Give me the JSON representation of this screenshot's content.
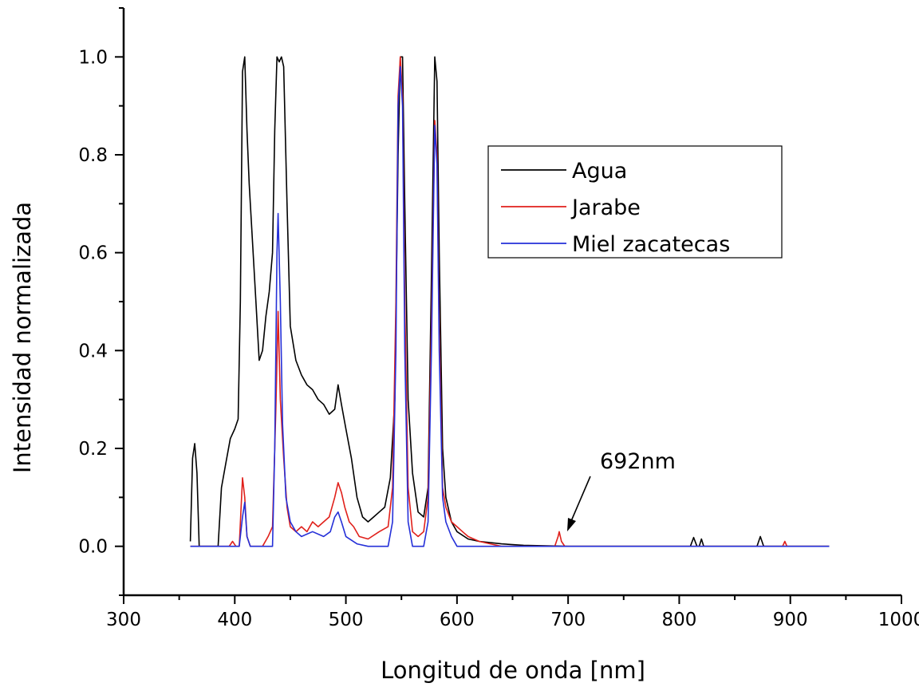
{
  "chart_data": {
    "type": "line",
    "title": "",
    "xlabel": "Longitud de onda [nm]",
    "ylabel": "Intensidad normalizada",
    "xlim": [
      300,
      1000
    ],
    "ylim": [
      -0.1,
      1.1
    ],
    "x_ticks": [
      300,
      400,
      500,
      600,
      700,
      800,
      900,
      1000
    ],
    "x_tick_labels": [
      "300",
      "400",
      "500",
      "600",
      "700",
      "800",
      "900",
      "1000"
    ],
    "y_ticks": [
      0.0,
      0.2,
      0.4,
      0.6,
      0.8,
      1.0
    ],
    "y_tick_labels": [
      "0.0",
      "0.2",
      "0.4",
      "0.6",
      "0.8",
      "1.0"
    ],
    "grid": false,
    "legend_position": "upper-right",
    "annotation": {
      "text": "692nm",
      "x": 692,
      "y": 0.03
    },
    "series": [
      {
        "name": "Agua",
        "color": "#000000",
        "points": [
          [
            360,
            0.01
          ],
          [
            362,
            0.18
          ],
          [
            364,
            0.21
          ],
          [
            366,
            0.15
          ],
          [
            368,
            0.0
          ],
          [
            380,
            0.0
          ],
          [
            385,
            0.0
          ],
          [
            388,
            0.12
          ],
          [
            392,
            0.17
          ],
          [
            396,
            0.22
          ],
          [
            400,
            0.24
          ],
          [
            403,
            0.26
          ],
          [
            405,
            0.5
          ],
          [
            407,
            0.97
          ],
          [
            409,
            1.0
          ],
          [
            411,
            0.85
          ],
          [
            413,
            0.74
          ],
          [
            416,
            0.62
          ],
          [
            419,
            0.5
          ],
          [
            422,
            0.38
          ],
          [
            425,
            0.4
          ],
          [
            428,
            0.47
          ],
          [
            431,
            0.52
          ],
          [
            434,
            0.6
          ],
          [
            436,
            0.85
          ],
          [
            438,
            1.0
          ],
          [
            440,
            0.99
          ],
          [
            442,
            1.0
          ],
          [
            444,
            0.98
          ],
          [
            447,
            0.7
          ],
          [
            450,
            0.45
          ],
          [
            455,
            0.38
          ],
          [
            460,
            0.35
          ],
          [
            465,
            0.33
          ],
          [
            470,
            0.32
          ],
          [
            475,
            0.3
          ],
          [
            480,
            0.29
          ],
          [
            485,
            0.27
          ],
          [
            490,
            0.28
          ],
          [
            493,
            0.33
          ],
          [
            496,
            0.29
          ],
          [
            500,
            0.24
          ],
          [
            505,
            0.18
          ],
          [
            510,
            0.1
          ],
          [
            515,
            0.06
          ],
          [
            520,
            0.05
          ],
          [
            525,
            0.06
          ],
          [
            530,
            0.07
          ],
          [
            535,
            0.08
          ],
          [
            540,
            0.14
          ],
          [
            544,
            0.3
          ],
          [
            547,
            0.8
          ],
          [
            549,
            1.0
          ],
          [
            551,
            1.0
          ],
          [
            553,
            0.7
          ],
          [
            556,
            0.3
          ],
          [
            560,
            0.15
          ],
          [
            565,
            0.07
          ],
          [
            570,
            0.06
          ],
          [
            574,
            0.12
          ],
          [
            577,
            0.55
          ],
          [
            580,
            1.0
          ],
          [
            582,
            0.95
          ],
          [
            584,
            0.6
          ],
          [
            587,
            0.2
          ],
          [
            590,
            0.1
          ],
          [
            595,
            0.05
          ],
          [
            600,
            0.03
          ],
          [
            610,
            0.015
          ],
          [
            620,
            0.01
          ],
          [
            640,
            0.005
          ],
          [
            660,
            0.002
          ],
          [
            700,
            0.0
          ],
          [
            810,
            0.0
          ],
          [
            813,
            0.018
          ],
          [
            816,
            0.0
          ],
          [
            818,
            0.0
          ],
          [
            820,
            0.015
          ],
          [
            822,
            0.0
          ],
          [
            870,
            0.0
          ],
          [
            873,
            0.02
          ],
          [
            876,
            0.0
          ],
          [
            935,
            0.0
          ]
        ]
      },
      {
        "name": "Jarabe",
        "color": "#e0201b",
        "points": [
          [
            360,
            0.0
          ],
          [
            395,
            0.0
          ],
          [
            398,
            0.01
          ],
          [
            401,
            0.0
          ],
          [
            404,
            0.0
          ],
          [
            407,
            0.14
          ],
          [
            409,
            0.1
          ],
          [
            411,
            0.02
          ],
          [
            414,
            0.0
          ],
          [
            425,
            0.0
          ],
          [
            430,
            0.02
          ],
          [
            434,
            0.04
          ],
          [
            437,
            0.28
          ],
          [
            439,
            0.48
          ],
          [
            441,
            0.3
          ],
          [
            444,
            0.18
          ],
          [
            447,
            0.08
          ],
          [
            450,
            0.04
          ],
          [
            455,
            0.03
          ],
          [
            460,
            0.04
          ],
          [
            465,
            0.03
          ],
          [
            470,
            0.05
          ],
          [
            475,
            0.04
          ],
          [
            480,
            0.05
          ],
          [
            485,
            0.06
          ],
          [
            490,
            0.1
          ],
          [
            493,
            0.13
          ],
          [
            496,
            0.11
          ],
          [
            499,
            0.08
          ],
          [
            503,
            0.05
          ],
          [
            507,
            0.04
          ],
          [
            512,
            0.02
          ],
          [
            520,
            0.015
          ],
          [
            530,
            0.03
          ],
          [
            538,
            0.04
          ],
          [
            542,
            0.12
          ],
          [
            545,
            0.5
          ],
          [
            547,
            0.92
          ],
          [
            549,
            1.0
          ],
          [
            551,
            0.92
          ],
          [
            553,
            0.5
          ],
          [
            556,
            0.12
          ],
          [
            560,
            0.03
          ],
          [
            565,
            0.02
          ],
          [
            570,
            0.03
          ],
          [
            574,
            0.1
          ],
          [
            577,
            0.45
          ],
          [
            580,
            0.87
          ],
          [
            582,
            0.8
          ],
          [
            584,
            0.45
          ],
          [
            587,
            0.12
          ],
          [
            590,
            0.08
          ],
          [
            595,
            0.05
          ],
          [
            600,
            0.04
          ],
          [
            605,
            0.03
          ],
          [
            610,
            0.02
          ],
          [
            620,
            0.01
          ],
          [
            630,
            0.005
          ],
          [
            640,
            0.0
          ],
          [
            688,
            0.0
          ],
          [
            691,
            0.02
          ],
          [
            692,
            0.03
          ],
          [
            694,
            0.01
          ],
          [
            697,
            0.0
          ],
          [
            893,
            0.0
          ],
          [
            895,
            0.01
          ],
          [
            897,
            0.0
          ],
          [
            935,
            0.0
          ]
        ]
      },
      {
        "name": "Miel zacatecas",
        "color": "#2530d8",
        "points": [
          [
            360,
            0.0
          ],
          [
            404,
            0.0
          ],
          [
            407,
            0.06
          ],
          [
            409,
            0.09
          ],
          [
            411,
            0.02
          ],
          [
            414,
            0.0
          ],
          [
            434,
            0.0
          ],
          [
            436,
            0.2
          ],
          [
            438,
            0.6
          ],
          [
            439,
            0.68
          ],
          [
            441,
            0.5
          ],
          [
            443,
            0.25
          ],
          [
            446,
            0.1
          ],
          [
            450,
            0.05
          ],
          [
            455,
            0.03
          ],
          [
            460,
            0.02
          ],
          [
            470,
            0.03
          ],
          [
            480,
            0.02
          ],
          [
            486,
            0.03
          ],
          [
            490,
            0.06
          ],
          [
            493,
            0.07
          ],
          [
            496,
            0.05
          ],
          [
            500,
            0.02
          ],
          [
            510,
            0.005
          ],
          [
            520,
            0.0
          ],
          [
            538,
            0.0
          ],
          [
            542,
            0.05
          ],
          [
            545,
            0.4
          ],
          [
            547,
            0.9
          ],
          [
            549,
            0.98
          ],
          [
            551,
            0.9
          ],
          [
            553,
            0.4
          ],
          [
            556,
            0.05
          ],
          [
            560,
            0.0
          ],
          [
            570,
            0.0
          ],
          [
            574,
            0.05
          ],
          [
            577,
            0.4
          ],
          [
            580,
            0.86
          ],
          [
            582,
            0.78
          ],
          [
            584,
            0.4
          ],
          [
            587,
            0.1
          ],
          [
            590,
            0.05
          ],
          [
            595,
            0.02
          ],
          [
            600,
            0.0
          ],
          [
            935,
            0.0
          ]
        ]
      }
    ]
  }
}
